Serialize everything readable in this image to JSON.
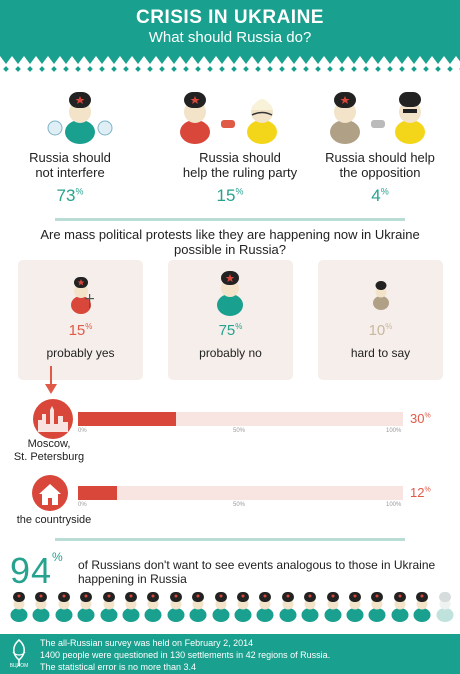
{
  "header": {
    "title": "CRISIS IN UKRAINE",
    "subtitle": "What should Russia do?"
  },
  "options": [
    {
      "label_line1": "Russia should",
      "label_line2": "not interfere",
      "value": "73",
      "unit": "%"
    },
    {
      "label_line1": "Russia should",
      "label_line2": "help the ruling party",
      "value": "15",
      "unit": "%"
    },
    {
      "label_line1": "Russia should help",
      "label_line2": "the opposition",
      "value": "4",
      "unit": "%"
    }
  ],
  "question": "Are mass political protests like they are happening now in Ukraine possible in Russia?",
  "answers": [
    {
      "value": "15",
      "unit": "%",
      "label": "probably yes"
    },
    {
      "value": "75",
      "unit": "%",
      "label": "probably no"
    },
    {
      "value": "10",
      "unit": "%",
      "label": "hard to say"
    }
  ],
  "bars": [
    {
      "label_line1": "Moscow,",
      "label_line2": "St. Petersburg",
      "value": 30,
      "value_text": "30",
      "unit": "%"
    },
    {
      "label_line1": "the countryside",
      "label_line2": "",
      "value": 12,
      "value_text": "12",
      "unit": "%"
    }
  ],
  "bar_ticks": {
    "t0": "0%",
    "t50": "50%",
    "t100": "100%"
  },
  "summary": {
    "value": "94",
    "unit": "%",
    "text": "of Russians don't want to see events analogous to those in Ukraine happening in Russia",
    "people_total": 20,
    "people_highlighted": 19
  },
  "footer": {
    "logo_text": "ВЦИОМ",
    "line1": "The all-Russian survey was held on February 2, 2014",
    "line2": "1400 people were questioned in 130 settlements in 42 regions of Russia.",
    "line3": "The statistical error is no more than 3.4"
  },
  "colors": {
    "teal": "#1aa08e",
    "red": "#d8473a",
    "yellow": "#f3d51a",
    "taupe": "#b0a186",
    "light_teal": "#bfe3dc"
  }
}
